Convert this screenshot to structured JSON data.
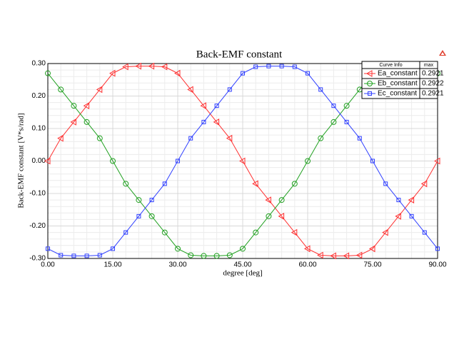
{
  "chart_data": {
    "type": "line",
    "title": "Back-EMF constant",
    "x_label": "degree [deg]",
    "y_label": "Back-EMF constant [V*s/rad]",
    "x": [
      0,
      3,
      6,
      9,
      12,
      15,
      18,
      21,
      24,
      27,
      30,
      33,
      36,
      39,
      42,
      45,
      48,
      51,
      54,
      57,
      60,
      63,
      66,
      69,
      72,
      75,
      78,
      81,
      84,
      87,
      90
    ],
    "series": [
      {
        "name": "Ea_constant",
        "color": "#ff3030",
        "marker": "triangle-left",
        "values": [
          0,
          0.07,
          0.12,
          0.17,
          0.22,
          0.27,
          0.29,
          0.292,
          0.292,
          0.29,
          0.27,
          0.22,
          0.17,
          0.12,
          0.07,
          0,
          -0.07,
          -0.12,
          -0.17,
          -0.22,
          -0.27,
          -0.29,
          -0.292,
          -0.292,
          -0.29,
          -0.27,
          -0.22,
          -0.17,
          -0.12,
          -0.07,
          0
        ]
      },
      {
        "name": "Eb_constant",
        "color": "#20a020",
        "marker": "circle",
        "values": [
          0.27,
          0.22,
          0.17,
          0.12,
          0.07,
          0,
          -0.07,
          -0.12,
          -0.17,
          -0.22,
          -0.27,
          -0.29,
          -0.292,
          -0.292,
          -0.29,
          -0.27,
          -0.22,
          -0.17,
          -0.12,
          -0.07,
          0,
          0.07,
          0.12,
          0.17,
          0.22,
          0.27,
          0.29,
          0.292,
          0.292,
          0.29,
          0.27
        ]
      },
      {
        "name": "Ec_constant",
        "color": "#3040ff",
        "marker": "square",
        "values": [
          -0.27,
          -0.29,
          -0.292,
          -0.292,
          -0.29,
          -0.27,
          -0.22,
          -0.17,
          -0.12,
          -0.07,
          0,
          0.07,
          0.12,
          0.17,
          0.22,
          0.27,
          0.29,
          0.292,
          0.292,
          0.29,
          0.27,
          0.22,
          0.17,
          0.12,
          0.07,
          0,
          -0.07,
          -0.12,
          -0.17,
          -0.22,
          -0.27
        ]
      }
    ],
    "legend": {
      "headers": [
        "Curve Info",
        "max"
      ],
      "max_values": [
        "0.2921",
        "0.2922",
        "0.2921"
      ]
    },
    "xlim": [
      0,
      90
    ],
    "xticks": [
      {
        "value": 0,
        "label": "0.00"
      },
      {
        "value": 15,
        "label": "15.00"
      },
      {
        "value": 30,
        "label": "30.00"
      },
      {
        "value": 45,
        "label": "45.00"
      },
      {
        "value": 60,
        "label": "60.00"
      },
      {
        "value": 75,
        "label": "75.00"
      },
      {
        "value": 90,
        "label": "90.00"
      }
    ],
    "ylim": [
      -0.3,
      0.3
    ],
    "yticks": [
      {
        "value": 0.3,
        "label": "0.30"
      },
      {
        "value": 0.2,
        "label": "0.20"
      },
      {
        "value": 0.1,
        "label": "0.10"
      },
      {
        "value": 0,
        "label": "0.00"
      },
      {
        "value": -0.1,
        "label": "-0.10"
      },
      {
        "value": -0.2,
        "label": "-0.20"
      },
      {
        "value": -0.3,
        "label": "-0.30"
      }
    ],
    "grid": true
  }
}
